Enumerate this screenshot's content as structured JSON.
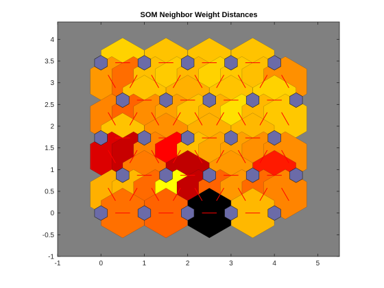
{
  "chart_data": {
    "type": "heatmap",
    "title": "SOM Neighbor Weight Distances",
    "xlabel": "",
    "ylabel": "",
    "xlim": [
      -1,
      5.5
    ],
    "ylim": [
      -1,
      4.4
    ],
    "xticks": [
      -1,
      0,
      1,
      2,
      3,
      4,
      5
    ],
    "yticks": [
      -1,
      -0.5,
      0,
      0.5,
      1,
      1.5,
      2,
      2.5,
      3,
      3.5,
      4
    ],
    "grid": false,
    "colors": {
      "background": "#808080",
      "neuron": "#6b6ba8",
      "connector_line": "#ff0000",
      "hex_edge": "#1a1a1a"
    },
    "hexagon_rows": [
      [
        {
          "x": 0.5,
          "y": 3.46,
          "c": "#ffd200"
        },
        {
          "x": 1.5,
          "y": 3.46,
          "c": "#ffc300"
        },
        {
          "x": 2.5,
          "y": 3.46,
          "c": "#ffc300"
        },
        {
          "x": 3.5,
          "y": 3.46,
          "c": "#ffc300"
        }
      ],
      [
        {
          "x": 0.25,
          "y": 3.03,
          "c": "#ff9800"
        },
        {
          "x": 0.75,
          "y": 3.03,
          "c": "#ff6d00"
        },
        {
          "x": 1.25,
          "y": 3.03,
          "c": "#ffbf00"
        },
        {
          "x": 1.75,
          "y": 3.03,
          "c": "#ffcb00"
        },
        {
          "x": 2.25,
          "y": 3.03,
          "c": "#ffb800"
        },
        {
          "x": 2.75,
          "y": 3.03,
          "c": "#ffd200"
        },
        {
          "x": 3.25,
          "y": 3.03,
          "c": "#ffc800"
        },
        {
          "x": 3.75,
          "y": 3.03,
          "c": "#ffbf00"
        },
        {
          "x": 4.25,
          "y": 3.03,
          "c": "#ff9000"
        }
      ],
      [
        {
          "x": 1,
          "y": 2.6,
          "c": "#ffc300"
        },
        {
          "x": 2,
          "y": 2.6,
          "c": "#ffb000"
        },
        {
          "x": 3,
          "y": 2.6,
          "c": "#ffc300"
        },
        {
          "x": 4,
          "y": 2.6,
          "c": "#ffd200"
        }
      ],
      [
        {
          "x": 0.25,
          "y": 2.17,
          "c": "#ff8400"
        },
        {
          "x": 0.75,
          "y": 2.17,
          "c": "#ff6300"
        },
        {
          "x": 1.25,
          "y": 2.17,
          "c": "#ff8d00"
        },
        {
          "x": 1.75,
          "y": 2.17,
          "c": "#ffa000"
        },
        {
          "x": 2.25,
          "y": 2.17,
          "c": "#ffc300"
        },
        {
          "x": 2.75,
          "y": 2.17,
          "c": "#ffb000"
        },
        {
          "x": 3.25,
          "y": 2.17,
          "c": "#ffe000"
        },
        {
          "x": 3.75,
          "y": 2.17,
          "c": "#ffb800"
        },
        {
          "x": 4.25,
          "y": 2.17,
          "c": "#ffc800"
        }
      ],
      [
        {
          "x": 0.5,
          "y": 1.73,
          "c": "#ffc300"
        },
        {
          "x": 1.5,
          "y": 1.73,
          "c": "#ff9000"
        },
        {
          "x": 2.5,
          "y": 1.73,
          "c": "#ffb000"
        },
        {
          "x": 3.5,
          "y": 1.73,
          "c": "#ffb800"
        }
      ],
      [
        {
          "x": 0.25,
          "y": 1.3,
          "c": "#dc0000"
        },
        {
          "x": 0.75,
          "y": 1.3,
          "c": "#c80000"
        },
        {
          "x": 1.25,
          "y": 1.3,
          "c": "#ff8400"
        },
        {
          "x": 1.75,
          "y": 1.3,
          "c": "#ff0000"
        },
        {
          "x": 2.25,
          "y": 1.3,
          "c": "#ffbf00"
        },
        {
          "x": 2.75,
          "y": 1.3,
          "c": "#ffa600"
        },
        {
          "x": 3.25,
          "y": 1.3,
          "c": "#ffa000"
        },
        {
          "x": 3.75,
          "y": 1.3,
          "c": "#ff9000"
        },
        {
          "x": 4.25,
          "y": 1.3,
          "c": "#ff8d00"
        }
      ],
      [
        {
          "x": 1,
          "y": 0.87,
          "c": "#ff7a00"
        },
        {
          "x": 2,
          "y": 0.87,
          "c": "#c00000"
        },
        {
          "x": 3,
          "y": 0.87,
          "c": "#ff9800"
        },
        {
          "x": 4,
          "y": 0.87,
          "c": "#ff1a00"
        }
      ],
      [
        {
          "x": 0.25,
          "y": 0.43,
          "c": "#ffb000"
        },
        {
          "x": 0.75,
          "y": 0.43,
          "c": "#ffb800"
        },
        {
          "x": 1.25,
          "y": 0.43,
          "c": "#ff6a00"
        },
        {
          "x": 1.75,
          "y": 0.43,
          "c": "#ffff00"
        },
        {
          "x": 2.25,
          "y": 0.43,
          "c": "#c40000"
        },
        {
          "x": 2.75,
          "y": 0.43,
          "c": "#ff6300"
        },
        {
          "x": 3.25,
          "y": 0.43,
          "c": "#ff9800"
        },
        {
          "x": 3.75,
          "y": 0.43,
          "c": "#ff6a00"
        },
        {
          "x": 4.25,
          "y": 0.43,
          "c": "#ff8400"
        }
      ],
      [
        {
          "x": 0.5,
          "y": 0,
          "c": "#ff7000"
        },
        {
          "x": 1.5,
          "y": 0,
          "c": "#ff6300"
        },
        {
          "x": 2.5,
          "y": 0,
          "c": "#000000"
        },
        {
          "x": 3.5,
          "y": 0,
          "c": "#ffb800"
        }
      ]
    ],
    "neurons": [
      {
        "x": 0,
        "y": 3.46
      },
      {
        "x": 1,
        "y": 3.46
      },
      {
        "x": 2,
        "y": 3.46
      },
      {
        "x": 3,
        "y": 3.46
      },
      {
        "x": 4,
        "y": 3.46
      },
      {
        "x": 0.5,
        "y": 2.6
      },
      {
        "x": 1.5,
        "y": 2.6
      },
      {
        "x": 2.5,
        "y": 2.6
      },
      {
        "x": 3.5,
        "y": 2.6
      },
      {
        "x": 4.5,
        "y": 2.6
      },
      {
        "x": 0,
        "y": 1.73
      },
      {
        "x": 1,
        "y": 1.73
      },
      {
        "x": 2,
        "y": 1.73
      },
      {
        "x": 3,
        "y": 1.73
      },
      {
        "x": 4,
        "y": 1.73
      },
      {
        "x": 0.5,
        "y": 0.87
      },
      {
        "x": 1.5,
        "y": 0.87
      },
      {
        "x": 2.5,
        "y": 0.87
      },
      {
        "x": 3.5,
        "y": 0.87
      },
      {
        "x": 4.5,
        "y": 0.87
      },
      {
        "x": 0,
        "y": 0
      },
      {
        "x": 1,
        "y": 0
      },
      {
        "x": 2,
        "y": 0
      },
      {
        "x": 3,
        "y": 0
      },
      {
        "x": 4,
        "y": 0
      }
    ]
  }
}
